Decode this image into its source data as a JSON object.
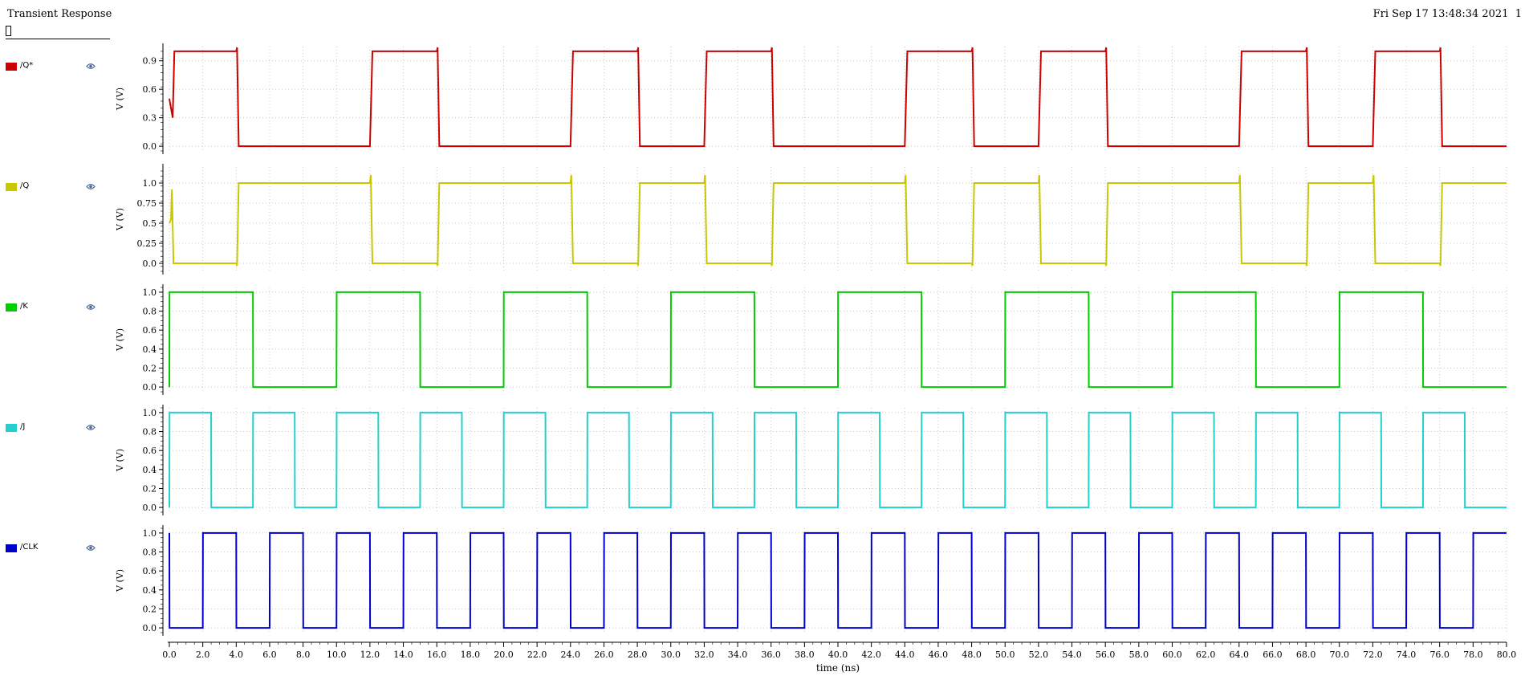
{
  "header": {
    "title": "Transient Response",
    "timestamp": "Fri Sep 17 13:48:34 2021  1"
  },
  "chart_data": {
    "type": "line",
    "xlabel": "time (ns)",
    "xlim": [
      0,
      80
    ],
    "xticks": [
      "0.0",
      "2.0",
      "4.0",
      "6.0",
      "8.0",
      "10.0",
      "12.0",
      "14.0",
      "16.0",
      "18.0",
      "20.0",
      "22.0",
      "24.0",
      "26.0",
      "28.0",
      "30.0",
      "32.0",
      "34.0",
      "36.0",
      "38.0",
      "40.0",
      "42.0",
      "44.0",
      "46.0",
      "48.0",
      "50.0",
      "52.0",
      "54.0",
      "56.0",
      "58.0",
      "60.0",
      "62.0",
      "64.0",
      "66.0",
      "68.0",
      "70.0",
      "72.0",
      "74.0",
      "76.0",
      "78.0",
      "80.0"
    ],
    "grid": true,
    "panels": [
      {
        "name": "/Q*",
        "color": "#cc0000",
        "ylabel": "V (V)",
        "ylim": [
          -0.05,
          1.05
        ],
        "yticks": [
          "0.0",
          "0.3",
          "0.6",
          "0.9"
        ],
        "ytick_values": [
          0,
          0.3,
          0.6,
          0.9
        ],
        "points": [
          [
            0,
            0.5
          ],
          [
            0.1,
            0.4
          ],
          [
            0.2,
            0.3
          ],
          [
            0.3,
            1.0
          ],
          [
            4.0,
            1.0
          ],
          [
            4.05,
            1.04
          ],
          [
            4.15,
            0.0
          ],
          [
            12.0,
            0.0
          ],
          [
            12.15,
            1.0
          ],
          [
            16.0,
            1.0
          ],
          [
            16.05,
            1.04
          ],
          [
            16.15,
            0.0
          ],
          [
            24.0,
            0.0
          ],
          [
            24.15,
            1.0
          ],
          [
            28.0,
            1.0
          ],
          [
            28.05,
            1.04
          ],
          [
            28.15,
            0.0
          ],
          [
            32.0,
            0.0
          ],
          [
            32.15,
            1.0
          ],
          [
            36.0,
            1.0
          ],
          [
            36.05,
            1.04
          ],
          [
            36.15,
            0.0
          ],
          [
            44.0,
            0.0
          ],
          [
            44.15,
            1.0
          ],
          [
            48.0,
            1.0
          ],
          [
            48.05,
            1.04
          ],
          [
            48.15,
            0.0
          ],
          [
            52.0,
            0.0
          ],
          [
            52.15,
            1.0
          ],
          [
            56.0,
            1.0
          ],
          [
            56.05,
            1.04
          ],
          [
            56.15,
            0.0
          ],
          [
            64.0,
            0.0
          ],
          [
            64.15,
            1.0
          ],
          [
            68.0,
            1.0
          ],
          [
            68.05,
            1.04
          ],
          [
            68.15,
            0.0
          ],
          [
            72.0,
            0.0
          ],
          [
            72.15,
            1.0
          ],
          [
            76.0,
            1.0
          ],
          [
            76.05,
            1.04
          ],
          [
            76.15,
            0.0
          ],
          [
            80.0,
            0.0
          ]
        ]
      },
      {
        "name": "/Q",
        "color": "#c8c800",
        "ylabel": "V (V)",
        "ylim": [
          -0.1,
          1.2
        ],
        "yticks": [
          "0.0",
          "0.25",
          "0.5",
          "0.75",
          "1.0"
        ],
        "ytick_values": [
          0,
          0.25,
          0.5,
          0.75,
          1.0
        ],
        "points": [
          [
            0,
            0.5
          ],
          [
            0.1,
            0.55
          ],
          [
            0.15,
            0.92
          ],
          [
            0.25,
            0.0
          ],
          [
            4.0,
            0.0
          ],
          [
            4.05,
            -0.03
          ],
          [
            4.15,
            1.0
          ],
          [
            12.0,
            1.0
          ],
          [
            12.05,
            1.1
          ],
          [
            12.15,
            0.0
          ],
          [
            16.0,
            0.0
          ],
          [
            16.05,
            -0.03
          ],
          [
            16.15,
            1.0
          ],
          [
            24.0,
            1.0
          ],
          [
            24.05,
            1.1
          ],
          [
            24.15,
            0.0
          ],
          [
            28.0,
            0.0
          ],
          [
            28.05,
            -0.03
          ],
          [
            28.15,
            1.0
          ],
          [
            32.0,
            1.0
          ],
          [
            32.05,
            1.1
          ],
          [
            32.15,
            0.0
          ],
          [
            36.0,
            0.0
          ],
          [
            36.05,
            -0.03
          ],
          [
            36.15,
            1.0
          ],
          [
            44.0,
            1.0
          ],
          [
            44.05,
            1.1
          ],
          [
            44.15,
            0.0
          ],
          [
            48.0,
            0.0
          ],
          [
            48.05,
            -0.03
          ],
          [
            48.15,
            1.0
          ],
          [
            52.0,
            1.0
          ],
          [
            52.05,
            1.1
          ],
          [
            52.15,
            0.0
          ],
          [
            56.0,
            0.0
          ],
          [
            56.05,
            -0.03
          ],
          [
            56.15,
            1.0
          ],
          [
            64.0,
            1.0
          ],
          [
            64.05,
            1.1
          ],
          [
            64.15,
            0.0
          ],
          [
            68.0,
            0.0
          ],
          [
            68.05,
            -0.03
          ],
          [
            68.15,
            1.0
          ],
          [
            72.0,
            1.0
          ],
          [
            72.05,
            1.1
          ],
          [
            72.15,
            0.0
          ],
          [
            76.0,
            0.0
          ],
          [
            76.05,
            -0.03
          ],
          [
            76.15,
            1.0
          ],
          [
            80.0,
            1.0
          ]
        ]
      },
      {
        "name": "/K",
        "color": "#00cc00",
        "ylabel": "V (V)",
        "ylim": [
          -0.05,
          1.05
        ],
        "yticks": [
          "0.0",
          "0.2",
          "0.4",
          "0.6",
          "0.8",
          "1.0"
        ],
        "ytick_values": [
          0,
          0.2,
          0.4,
          0.6,
          0.8,
          1.0
        ],
        "points": [
          [
            0,
            0
          ],
          [
            0.01,
            1
          ],
          [
            5,
            1
          ],
          [
            5.01,
            0
          ],
          [
            10,
            0
          ],
          [
            10.01,
            1
          ],
          [
            15,
            1
          ],
          [
            15.01,
            0
          ],
          [
            20,
            0
          ],
          [
            20.01,
            1
          ],
          [
            25,
            1
          ],
          [
            25.01,
            0
          ],
          [
            30,
            0
          ],
          [
            30.01,
            1
          ],
          [
            35,
            1
          ],
          [
            35.01,
            0
          ],
          [
            40,
            0
          ],
          [
            40.01,
            1
          ],
          [
            45,
            1
          ],
          [
            45.01,
            0
          ],
          [
            50,
            0
          ],
          [
            50.01,
            1
          ],
          [
            55,
            1
          ],
          [
            55.01,
            0
          ],
          [
            60,
            0
          ],
          [
            60.01,
            1
          ],
          [
            65,
            1
          ],
          [
            65.01,
            0
          ],
          [
            70,
            0
          ],
          [
            70.01,
            1
          ],
          [
            75,
            1
          ],
          [
            75.01,
            0
          ],
          [
            80,
            0
          ]
        ]
      },
      {
        "name": "/J",
        "color": "#22d0d0",
        "ylabel": "V (V)",
        "ylim": [
          -0.05,
          1.05
        ],
        "yticks": [
          "0.0",
          "0.2",
          "0.4",
          "0.6",
          "0.8",
          "1.0"
        ],
        "ytick_values": [
          0,
          0.2,
          0.4,
          0.6,
          0.8,
          1.0
        ],
        "points": [
          [
            0,
            0
          ],
          [
            0.01,
            1
          ],
          [
            2.5,
            1
          ],
          [
            2.51,
            0
          ],
          [
            5,
            0
          ],
          [
            5.01,
            1
          ],
          [
            7.5,
            1
          ],
          [
            7.51,
            0
          ],
          [
            10,
            0
          ],
          [
            10.01,
            1
          ],
          [
            12.5,
            1
          ],
          [
            12.51,
            0
          ],
          [
            15,
            0
          ],
          [
            15.01,
            1
          ],
          [
            17.5,
            1
          ],
          [
            17.51,
            0
          ],
          [
            20,
            0
          ],
          [
            20.01,
            1
          ],
          [
            22.5,
            1
          ],
          [
            22.51,
            0
          ],
          [
            25,
            0
          ],
          [
            25.01,
            1
          ],
          [
            27.5,
            1
          ],
          [
            27.51,
            0
          ],
          [
            30,
            0
          ],
          [
            30.01,
            1
          ],
          [
            32.5,
            1
          ],
          [
            32.51,
            0
          ],
          [
            35,
            0
          ],
          [
            35.01,
            1
          ],
          [
            37.5,
            1
          ],
          [
            37.51,
            0
          ],
          [
            40,
            0
          ],
          [
            40.01,
            1
          ],
          [
            42.5,
            1
          ],
          [
            42.51,
            0
          ],
          [
            45,
            0
          ],
          [
            45.01,
            1
          ],
          [
            47.5,
            1
          ],
          [
            47.51,
            0
          ],
          [
            50,
            0
          ],
          [
            50.01,
            1
          ],
          [
            52.5,
            1
          ],
          [
            52.51,
            0
          ],
          [
            55,
            0
          ],
          [
            55.01,
            1
          ],
          [
            57.5,
            1
          ],
          [
            57.51,
            0
          ],
          [
            60,
            0
          ],
          [
            60.01,
            1
          ],
          [
            62.5,
            1
          ],
          [
            62.51,
            0
          ],
          [
            65,
            0
          ],
          [
            65.01,
            1
          ],
          [
            67.5,
            1
          ],
          [
            67.51,
            0
          ],
          [
            70,
            0
          ],
          [
            70.01,
            1
          ],
          [
            72.5,
            1
          ],
          [
            72.51,
            0
          ],
          [
            75,
            0
          ],
          [
            75.01,
            1
          ],
          [
            77.5,
            1
          ],
          [
            77.51,
            0
          ],
          [
            80,
            0
          ]
        ]
      },
      {
        "name": "/CLK",
        "color": "#0000cc",
        "ylabel": "V (V)",
        "ylim": [
          -0.05,
          1.05
        ],
        "yticks": [
          "0.0",
          "0.2",
          "0.4",
          "0.6",
          "0.8",
          "1.0"
        ],
        "ytick_values": [
          0,
          0.2,
          0.4,
          0.6,
          0.8,
          1.0
        ],
        "points": [
          [
            0,
            1
          ],
          [
            0.01,
            0
          ],
          [
            2,
            0
          ],
          [
            2.01,
            1
          ],
          [
            4,
            1
          ],
          [
            4.01,
            0
          ],
          [
            6,
            0
          ],
          [
            6.01,
            1
          ],
          [
            8,
            1
          ],
          [
            8.01,
            0
          ],
          [
            10,
            0
          ],
          [
            10.01,
            1
          ],
          [
            12,
            1
          ],
          [
            12.01,
            0
          ],
          [
            14,
            0
          ],
          [
            14.01,
            1
          ],
          [
            16,
            1
          ],
          [
            16.01,
            0
          ],
          [
            18,
            0
          ],
          [
            18.01,
            1
          ],
          [
            20,
            1
          ],
          [
            20.01,
            0
          ],
          [
            22,
            0
          ],
          [
            22.01,
            1
          ],
          [
            24,
            1
          ],
          [
            24.01,
            0
          ],
          [
            26,
            0
          ],
          [
            26.01,
            1
          ],
          [
            28,
            1
          ],
          [
            28.01,
            0
          ],
          [
            30,
            0
          ],
          [
            30.01,
            1
          ],
          [
            32,
            1
          ],
          [
            32.01,
            0
          ],
          [
            34,
            0
          ],
          [
            34.01,
            1
          ],
          [
            36,
            1
          ],
          [
            36.01,
            0
          ],
          [
            38,
            0
          ],
          [
            38.01,
            1
          ],
          [
            40,
            1
          ],
          [
            40.01,
            0
          ],
          [
            42,
            0
          ],
          [
            42.01,
            1
          ],
          [
            44,
            1
          ],
          [
            44.01,
            0
          ],
          [
            46,
            0
          ],
          [
            46.01,
            1
          ],
          [
            48,
            1
          ],
          [
            48.01,
            0
          ],
          [
            50,
            0
          ],
          [
            50.01,
            1
          ],
          [
            52,
            1
          ],
          [
            52.01,
            0
          ],
          [
            54,
            0
          ],
          [
            54.01,
            1
          ],
          [
            56,
            1
          ],
          [
            56.01,
            0
          ],
          [
            58,
            0
          ],
          [
            58.01,
            1
          ],
          [
            60,
            1
          ],
          [
            60.01,
            0
          ],
          [
            62,
            0
          ],
          [
            62.01,
            1
          ],
          [
            64,
            1
          ],
          [
            64.01,
            0
          ],
          [
            66,
            0
          ],
          [
            66.01,
            1
          ],
          [
            68,
            1
          ],
          [
            68.01,
            0
          ],
          [
            70,
            0
          ],
          [
            70.01,
            1
          ],
          [
            72,
            1
          ],
          [
            72.01,
            0
          ],
          [
            74,
            0
          ],
          [
            74.01,
            1
          ],
          [
            76,
            1
          ],
          [
            76.01,
            0
          ],
          [
            78,
            0
          ],
          [
            78.01,
            1
          ],
          [
            80,
            1
          ]
        ]
      }
    ]
  }
}
